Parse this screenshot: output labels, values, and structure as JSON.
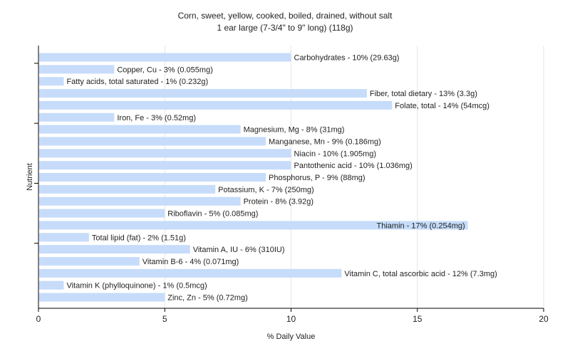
{
  "chart_data": {
    "type": "bar",
    "orientation": "horizontal",
    "title": "Corn, sweet, yellow, cooked, boiled, drained, without salt",
    "subtitle": "1 ear large (7-3/4\" to 9\" long) (118g)",
    "xlabel": "% Daily Value",
    "ylabel": "Nutrient",
    "xlim": [
      0,
      20
    ],
    "xticks": [
      0,
      5,
      10,
      15,
      20
    ],
    "grid": true,
    "bar_color": "#c6dcfa",
    "categories": [
      "Carbohydrates",
      "Copper, Cu",
      "Fatty acids, total saturated",
      "Fiber, total dietary",
      "Folate, total",
      "Iron, Fe",
      "Magnesium, Mg",
      "Manganese, Mn",
      "Niacin",
      "Pantothenic acid",
      "Phosphorus, P",
      "Potassium, K",
      "Protein",
      "Riboflavin",
      "Thiamin",
      "Total lipid (fat)",
      "Vitamin A, IU",
      "Vitamin B-6",
      "Vitamin C, total ascorbic acid",
      "Vitamin K (phylloquinone)",
      "Zinc, Zn"
    ],
    "values": [
      10,
      3,
      1,
      13,
      14,
      3,
      8,
      9,
      10,
      10,
      9,
      7,
      8,
      5,
      17,
      2,
      6,
      4,
      12,
      1,
      5
    ],
    "labels": [
      "Carbohydrates - 10% (29.63g)",
      "Copper, Cu - 3% (0.055mg)",
      "Fatty acids, total saturated - 1% (0.232g)",
      "Fiber, total dietary - 13% (3.3g)",
      "Folate, total - 14% (54mcg)",
      "Iron, Fe - 3% (0.52mg)",
      "Magnesium, Mg - 8% (31mg)",
      "Manganese, Mn - 9% (0.186mg)",
      "Niacin - 10% (1.905mg)",
      "Pantothenic acid - 10% (1.036mg)",
      "Phosphorus, P - 9% (88mg)",
      "Potassium, K - 7% (250mg)",
      "Protein - 8% (3.92g)",
      "Riboflavin - 5% (0.085mg)",
      "Thiamin - 17% (0.254mg)",
      "Total lipid (fat) - 2% (1.51g)",
      "Vitamin A, IU - 6% (310IU)",
      "Vitamin B-6 - 4% (0.071mg)",
      "Vitamin C, total ascorbic acid - 12% (7.3mg)",
      "Vitamin K (phylloquinone) - 1% (0.5mcg)",
      "Zinc, Zn - 5% (0.72mg)"
    ]
  }
}
